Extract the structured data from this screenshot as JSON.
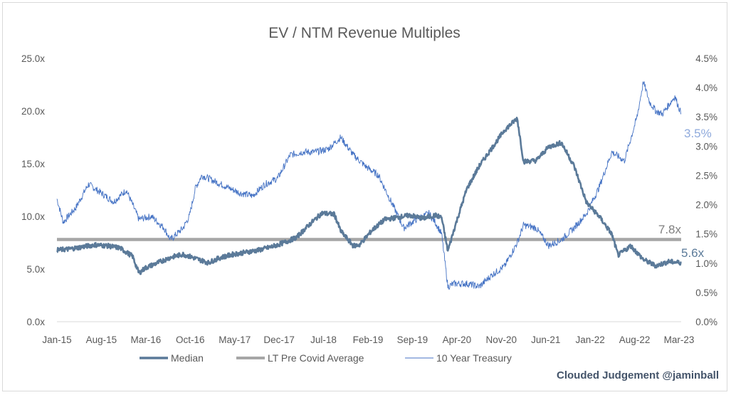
{
  "chart_data": {
    "type": "line",
    "title": "EV / NTM Revenue Multiples",
    "x_tick_labels": [
      "Jan-15",
      "Aug-15",
      "Mar-16",
      "Oct-16",
      "May-17",
      "Dec-17",
      "Jul-18",
      "Feb-19",
      "Sep-19",
      "Apr-20",
      "Nov-20",
      "Jun-21",
      "Jan-22",
      "Aug-22",
      "Mar-23"
    ],
    "y_left": {
      "ylim": [
        0,
        25
      ],
      "ticks": [
        "0.0x",
        "5.0x",
        "10.0x",
        "15.0x",
        "20.0x",
        "25.0x"
      ]
    },
    "y_right": {
      "ylim": [
        0,
        4.5
      ],
      "ticks": [
        "0.0%",
        "0.5%",
        "1.0%",
        "1.5%",
        "2.0%",
        "2.5%",
        "3.0%",
        "3.5%",
        "4.0%",
        "4.5%"
      ]
    },
    "grid": false,
    "legend_position": "bottom",
    "series": [
      {
        "name": "Median",
        "axis": "left",
        "color": "#5b7a99",
        "points": [
          [
            "2015-01",
            6.8
          ],
          [
            "2015-03",
            6.9
          ],
          [
            "2015-05",
            7.1
          ],
          [
            "2015-07",
            7.3
          ],
          [
            "2015-09",
            7.2
          ],
          [
            "2015-11",
            7.0
          ],
          [
            "2016-01",
            6.2
          ],
          [
            "2016-02",
            4.6
          ],
          [
            "2016-03",
            5.1
          ],
          [
            "2016-05",
            5.6
          ],
          [
            "2016-07",
            6.1
          ],
          [
            "2016-09",
            6.4
          ],
          [
            "2016-11",
            6.0
          ],
          [
            "2017-01",
            5.6
          ],
          [
            "2017-03",
            6.1
          ],
          [
            "2017-05",
            6.4
          ],
          [
            "2017-07",
            6.6
          ],
          [
            "2017-09",
            6.8
          ],
          [
            "2017-11",
            7.1
          ],
          [
            "2018-01",
            7.5
          ],
          [
            "2018-03",
            8.0
          ],
          [
            "2018-05",
            9.2
          ],
          [
            "2018-07",
            10.3
          ],
          [
            "2018-09",
            10.2
          ],
          [
            "2018-10",
            8.6
          ],
          [
            "2018-12",
            7.2
          ],
          [
            "2019-01",
            7.3
          ],
          [
            "2019-03",
            8.7
          ],
          [
            "2019-05",
            9.7
          ],
          [
            "2019-07",
            9.9
          ],
          [
            "2019-09",
            10.1
          ],
          [
            "2019-11",
            9.8
          ],
          [
            "2020-01",
            10.1
          ],
          [
            "2020-02",
            9.9
          ],
          [
            "2020-03",
            6.7
          ],
          [
            "2020-04",
            8.8
          ],
          [
            "2020-06",
            12.6
          ],
          [
            "2020-08",
            14.8
          ],
          [
            "2020-10",
            16.5
          ],
          [
            "2020-12",
            18.2
          ],
          [
            "2021-02",
            19.3
          ],
          [
            "2021-03",
            15.2
          ],
          [
            "2021-05",
            15.3
          ],
          [
            "2021-07",
            16.6
          ],
          [
            "2021-09",
            17.0
          ],
          [
            "2021-11",
            14.8
          ],
          [
            "2022-01",
            11.3
          ],
          [
            "2022-03",
            10.0
          ],
          [
            "2022-05",
            8.3
          ],
          [
            "2022-06",
            6.3
          ],
          [
            "2022-08",
            7.2
          ],
          [
            "2022-10",
            5.9
          ],
          [
            "2022-12",
            5.3
          ],
          [
            "2023-02",
            5.7
          ],
          [
            "2023-04",
            5.6
          ]
        ]
      },
      {
        "name": "LT Pre Covid Average",
        "axis": "left",
        "color": "#a6a6a6",
        "constant": 7.8,
        "end_label": "7.8x"
      },
      {
        "name": "10 Year Treasury",
        "axis": "right",
        "color": "#4472c4",
        "points": [
          [
            "2015-01",
            2.1
          ],
          [
            "2015-02",
            1.7
          ],
          [
            "2015-04",
            1.95
          ],
          [
            "2015-06",
            2.35
          ],
          [
            "2015-08",
            2.2
          ],
          [
            "2015-10",
            2.05
          ],
          [
            "2015-12",
            2.25
          ],
          [
            "2016-02",
            1.75
          ],
          [
            "2016-04",
            1.8
          ],
          [
            "2016-06",
            1.6
          ],
          [
            "2016-07",
            1.4
          ],
          [
            "2016-09",
            1.6
          ],
          [
            "2016-10",
            1.8
          ],
          [
            "2016-11",
            2.3
          ],
          [
            "2016-12",
            2.5
          ],
          [
            "2017-02",
            2.4
          ],
          [
            "2017-04",
            2.3
          ],
          [
            "2017-06",
            2.2
          ],
          [
            "2017-08",
            2.15
          ],
          [
            "2017-10",
            2.35
          ],
          [
            "2017-12",
            2.45
          ],
          [
            "2018-02",
            2.85
          ],
          [
            "2018-04",
            2.9
          ],
          [
            "2018-06",
            2.9
          ],
          [
            "2018-08",
            2.95
          ],
          [
            "2018-10",
            3.15
          ],
          [
            "2018-12",
            2.85
          ],
          [
            "2019-02",
            2.65
          ],
          [
            "2019-04",
            2.5
          ],
          [
            "2019-06",
            2.05
          ],
          [
            "2019-08",
            1.6
          ],
          [
            "2019-10",
            1.75
          ],
          [
            "2019-12",
            1.85
          ],
          [
            "2020-01",
            1.7
          ],
          [
            "2020-02",
            1.5
          ],
          [
            "2020-03",
            0.6
          ],
          [
            "2020-04",
            0.65
          ],
          [
            "2020-06",
            0.65
          ],
          [
            "2020-08",
            0.6
          ],
          [
            "2020-10",
            0.8
          ],
          [
            "2020-12",
            0.95
          ],
          [
            "2021-02",
            1.35
          ],
          [
            "2021-03",
            1.65
          ],
          [
            "2021-05",
            1.6
          ],
          [
            "2021-07",
            1.3
          ],
          [
            "2021-09",
            1.4
          ],
          [
            "2021-11",
            1.6
          ],
          [
            "2022-01",
            1.85
          ],
          [
            "2022-03",
            2.3
          ],
          [
            "2022-05",
            2.9
          ],
          [
            "2022-07",
            2.75
          ],
          [
            "2022-09",
            3.5
          ],
          [
            "2022-10",
            4.1
          ],
          [
            "2022-11",
            3.75
          ],
          [
            "2022-12",
            3.6
          ],
          [
            "2023-01",
            3.55
          ],
          [
            "2023-03",
            3.85
          ],
          [
            "2023-04",
            3.55
          ]
        ],
        "end_label": "3.5%"
      }
    ],
    "end_labels": {
      "median": "5.6x",
      "average": "7.8x",
      "treasury": "3.5%"
    },
    "legend": [
      {
        "name": "Median",
        "color": "#5b7a99"
      },
      {
        "name": "LT Pre Covid Average",
        "color": "#a6a6a6"
      },
      {
        "name": "10 Year Treasury",
        "color": "#4472c4"
      }
    ]
  },
  "credit": "Clouded Judgement @jaminball",
  "colors": {
    "credit": "#44546a",
    "axis_text": "#595959",
    "median": "#5b7a99",
    "average": "#a6a6a6",
    "treasury": "#4472c4",
    "treasury_label": "#8faadc"
  }
}
